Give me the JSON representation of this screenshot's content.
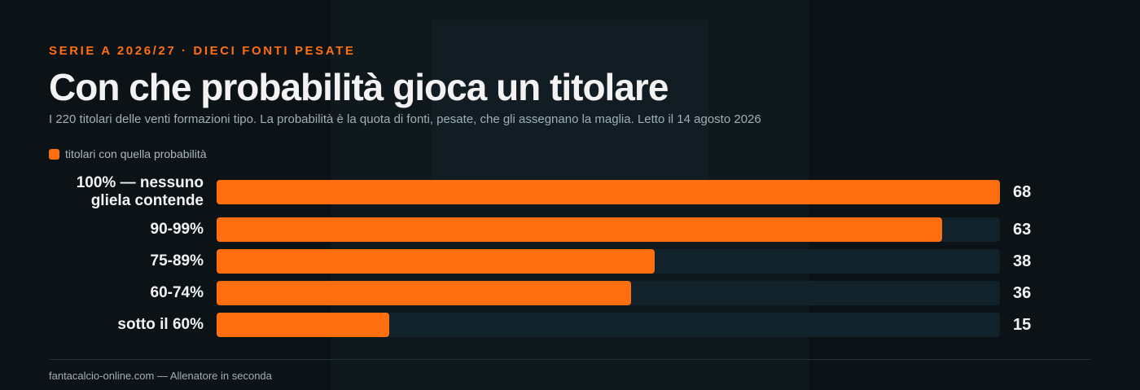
{
  "chart_data": {
    "type": "bar",
    "orientation": "horizontal",
    "eyebrow": "SERIE A 2026/27 · DIECI FONTI PESATE",
    "title": "Con che probabilità gioca un titolare",
    "subtitle": "I 220 titolari delle venti formazioni tipo. La probabilità è la quota di fonti, pesate, che gli assegnano la maglia. Letto il 14 agosto 2026",
    "categories": [
      "100% — nessuno gliela contende",
      "90-99%",
      "75-89%",
      "60-74%",
      "sotto il 60%"
    ],
    "series": [
      {
        "name": "titolari con quella probabilità",
        "color": "#ff6f0f",
        "values": [
          68,
          63,
          38,
          36,
          15
        ]
      }
    ],
    "xlim": [
      0,
      68
    ],
    "footer": "fantacalcio-online.com — Allenatore in seconda"
  }
}
